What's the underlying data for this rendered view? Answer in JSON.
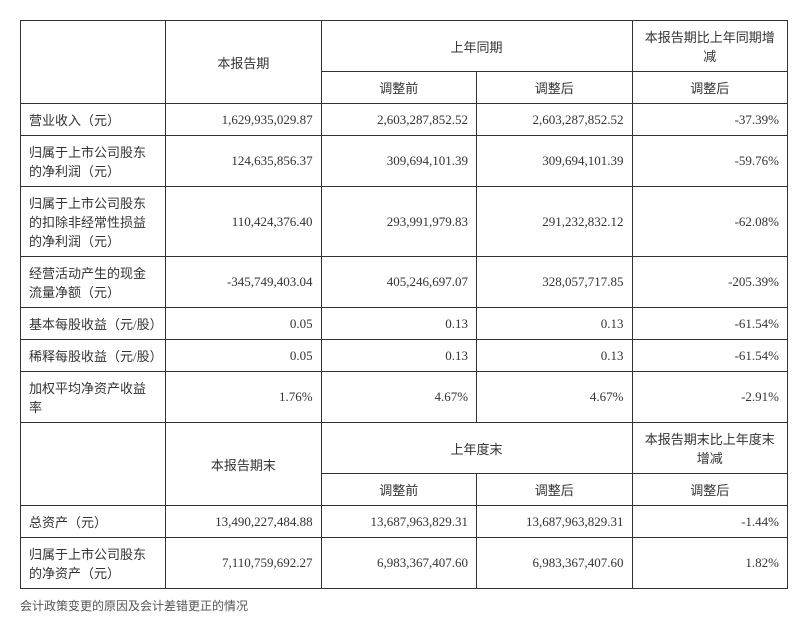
{
  "header1": {
    "blank": "",
    "current": "本报告期",
    "prior": "上年同期",
    "change": "本报告期比上年同期增减"
  },
  "header1b": {
    "before": "调整前",
    "after": "调整后",
    "change_after": "调整后"
  },
  "rows1": [
    {
      "label": "营业收入（元）",
      "current": "1,629,935,029.87",
      "before": "2,603,287,852.52",
      "after": "2,603,287,852.52",
      "change": "-37.39%"
    },
    {
      "label": "归属于上市公司股东的净利润（元）",
      "current": "124,635,856.37",
      "before": "309,694,101.39",
      "after": "309,694,101.39",
      "change": "-59.76%"
    },
    {
      "label": "归属于上市公司股东的扣除非经常性损益的净利润（元）",
      "current": "110,424,376.40",
      "before": "293,991,979.83",
      "after": "291,232,832.12",
      "change": "-62.08%"
    },
    {
      "label": "经营活动产生的现金流量净额（元）",
      "current": "-345,749,403.04",
      "before": "405,246,697.07",
      "after": "328,057,717.85",
      "change": "-205.39%"
    },
    {
      "label": "基本每股收益（元/股）",
      "current": "0.05",
      "before": "0.13",
      "after": "0.13",
      "change": "-61.54%"
    },
    {
      "label": "稀释每股收益（元/股）",
      "current": "0.05",
      "before": "0.13",
      "after": "0.13",
      "change": "-61.54%"
    },
    {
      "label": "加权平均净资产收益率",
      "current": "1.76%",
      "before": "4.67%",
      "after": "4.67%",
      "change": "-2.91%"
    }
  ],
  "header2": {
    "current": "本报告期末",
    "prior": "上年度末",
    "change": "本报告期末比上年度末增减"
  },
  "header2b": {
    "before": "调整前",
    "after": "调整后",
    "change_after": "调整后"
  },
  "rows2": [
    {
      "label": "总资产（元）",
      "current": "13,490,227,484.88",
      "before": "13,687,963,829.31",
      "after": "13,687,963,829.31",
      "change": "-1.44%"
    },
    {
      "label": "归属于上市公司股东的净资产（元）",
      "current": "7,110,759,692.27",
      "before": "6,983,367,407.60",
      "after": "6,983,367,407.60",
      "change": "1.82%"
    }
  ],
  "footnote": "会计政策变更的原因及会计差错更正的情况"
}
